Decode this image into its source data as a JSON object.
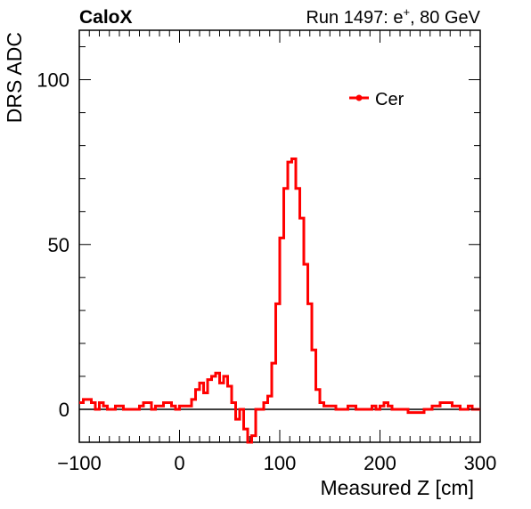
{
  "header": {
    "experiment": "CaloX",
    "run_prefix": "Run 1497: e",
    "run_sup": "+",
    "run_suffix": ", 80 GeV"
  },
  "chart_data": {
    "type": "line",
    "subtype": "step-histogram",
    "title": "",
    "xlabel": "Measured Z [cm]",
    "ylabel": "DRS ADC",
    "xlim": [
      -100,
      300
    ],
    "ylim": [
      -10,
      115
    ],
    "xticks": [
      -100,
      0,
      100,
      200,
      300
    ],
    "xtick_labels": [
      "−100",
      "0",
      "100",
      "200",
      "300"
    ],
    "yticks": [
      0,
      50,
      100
    ],
    "ytick_labels": [
      "0",
      "50",
      "100"
    ],
    "grid": false,
    "legend": {
      "placement": "top-right",
      "entries": [
        "Cer"
      ]
    },
    "series": [
      {
        "name": "Cer",
        "color": "#ff0000",
        "bin_width": 4,
        "x_start": -100,
        "values": [
          2,
          3,
          3,
          2,
          0,
          2,
          1,
          0,
          0,
          1,
          1,
          0,
          0,
          0,
          0,
          1,
          2,
          2,
          0,
          1,
          1,
          2,
          2,
          1,
          0,
          1,
          1,
          1,
          3,
          6,
          8,
          5,
          9,
          10,
          11,
          8,
          10,
          7,
          2,
          -3,
          0,
          -6,
          -10,
          -8,
          0,
          0,
          2,
          4,
          14,
          32,
          52,
          67,
          75,
          76,
          67,
          58,
          44,
          32,
          18,
          6,
          2,
          1,
          1,
          1,
          0,
          0,
          0,
          1,
          1,
          0,
          0,
          0,
          0,
          1,
          0,
          1,
          2,
          1,
          0,
          0,
          0,
          0,
          -1,
          -1,
          -1,
          -1,
          0,
          0,
          1,
          1,
          2,
          2,
          2,
          1,
          1,
          0,
          0,
          1,
          0,
          0
        ]
      }
    ],
    "reference_line": {
      "y": 0,
      "color": "#000000"
    }
  }
}
